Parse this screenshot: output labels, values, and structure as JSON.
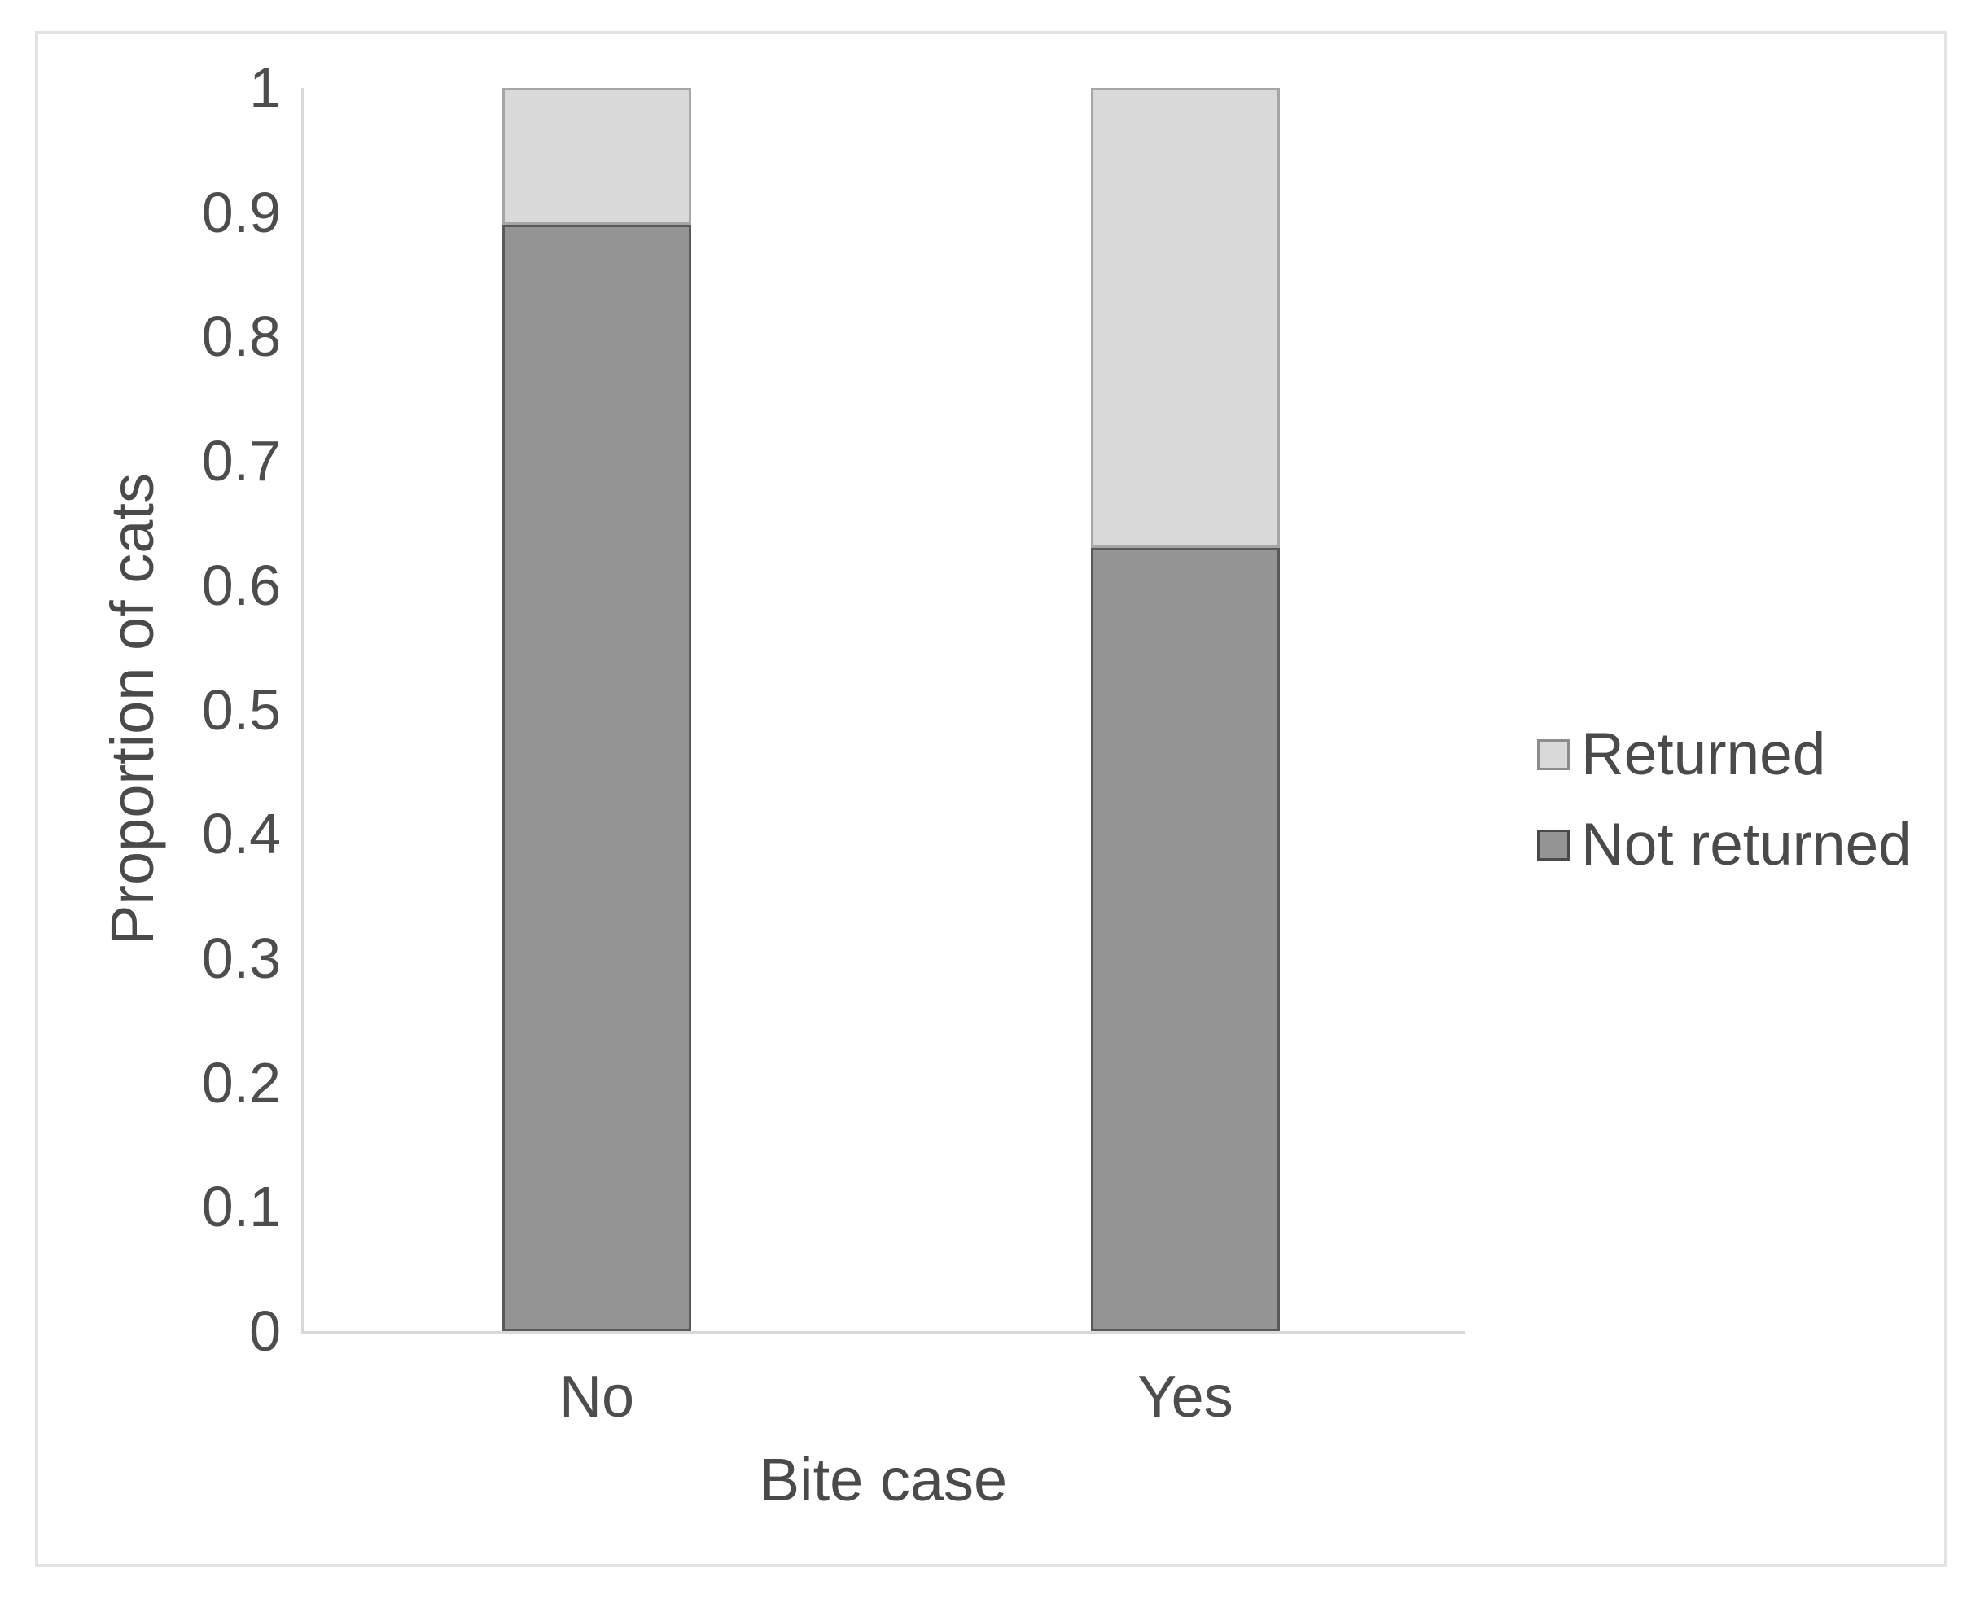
{
  "chart_data": {
    "type": "bar",
    "stacked": true,
    "title": "",
    "categories": [
      "No",
      "Yes"
    ],
    "series": [
      {
        "name": "Not returned",
        "color": "#949494",
        "border_color": "#595959",
        "values": [
          0.89,
          0.63
        ]
      },
      {
        "name": "Returned",
        "color": "#d9d9d9",
        "border_color": "#a6a6a6",
        "values": [
          0.11,
          0.37
        ]
      }
    ],
    "xlabel": "Bite case",
    "ylabel": "Proportion of cats",
    "ylim": [
      0,
      1
    ],
    "yticks": [
      "1",
      "0.9",
      "0.8",
      "0.7",
      "0.6",
      "0.5",
      "0.4",
      "0.3",
      "0.2",
      "0.1",
      "0"
    ],
    "grid": false,
    "axis_color": "#d9d9d9",
    "text_color": "#4d4d4d",
    "legend_position": "right",
    "legend": [
      {
        "label": "Returned",
        "color": "#d9d9d9",
        "border_color": "#8c8c8c"
      },
      {
        "label": "Not returned",
        "color": "#949494",
        "border_color": "#4a4a4a"
      }
    ]
  }
}
